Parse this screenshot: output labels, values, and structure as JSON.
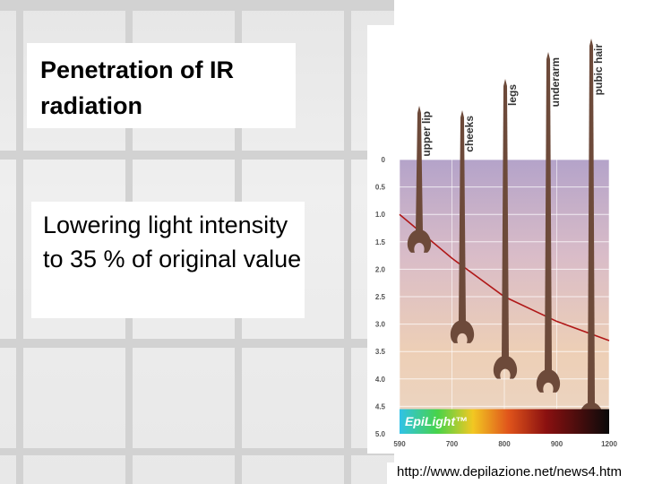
{
  "slide": {
    "title": "Penetration of IR radiation",
    "body": "Lowering light intensity to 35 % of original value",
    "source_url": "http://www.depilazione.net/news4.htm"
  },
  "chart_data": {
    "type": "line",
    "title": "",
    "xlabel": "",
    "ylabel": "",
    "x_ticks": [
      "590",
      "700",
      "800",
      "900",
      "1200"
    ],
    "y_ticks": [
      "0",
      "0.5",
      "1.0",
      "1.5",
      "2.0",
      "2.5",
      "3.0",
      "3.5",
      "4.0",
      "4.5",
      "5.0"
    ],
    "ylim": [
      0,
      5.0
    ],
    "y_inverted": true,
    "series": [
      {
        "x": [
          590,
          700,
          800,
          900,
          1200
        ],
        "values": [
          1.0,
          1.8,
          2.5,
          2.95,
          3.3
        ]
      }
    ],
    "hair_labels": [
      "upper lip",
      "cheeks",
      "legs",
      "underarm",
      "pubic hair"
    ],
    "hair_bulb_depths": [
      1.55,
      3.2,
      3.85,
      4.1,
      4.7
    ],
    "brand_label": "EpiLight™",
    "colors": {
      "curve": "#b01818",
      "hair": "#6d4a3a",
      "skin_top": "#b7a5c8",
      "skin_bottom": "#ead2bc"
    }
  }
}
